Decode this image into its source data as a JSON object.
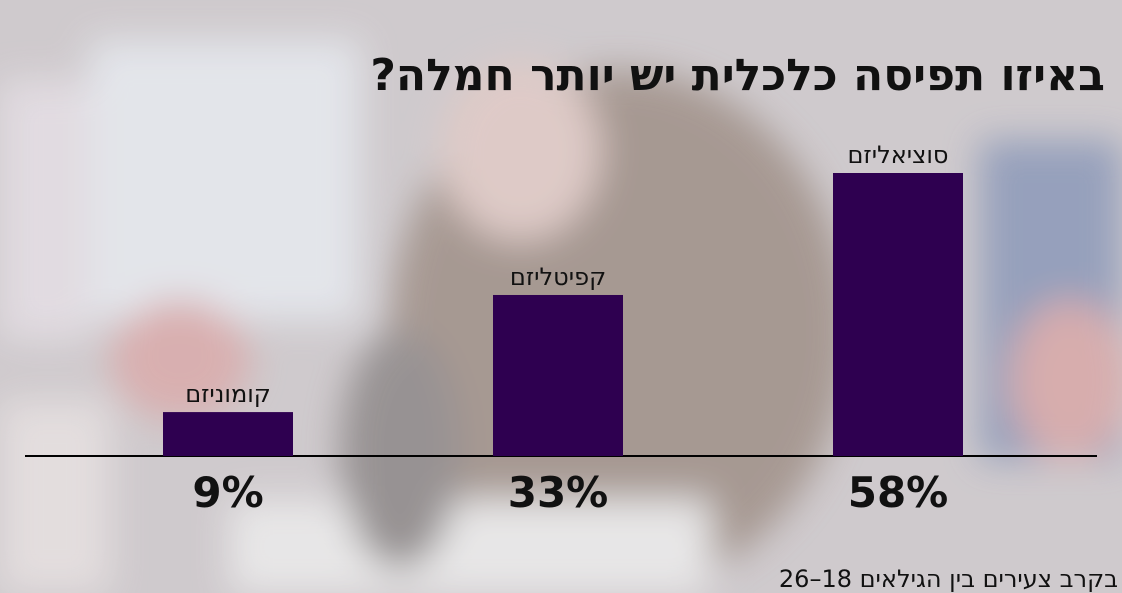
{
  "chart_data": {
    "type": "bar",
    "title": "באיזו תפיסה כלכלית יש יותר חמלה?",
    "subtitle": "בקרב צעירים בין הגילאים 18–26",
    "categories": [
      "קומוניזם",
      "קפיטליזם",
      "סוציאליזם"
    ],
    "values": [
      9,
      33,
      58
    ],
    "value_labels": [
      "9%",
      "33%",
      "58%"
    ],
    "color": "#2e0050"
  }
}
